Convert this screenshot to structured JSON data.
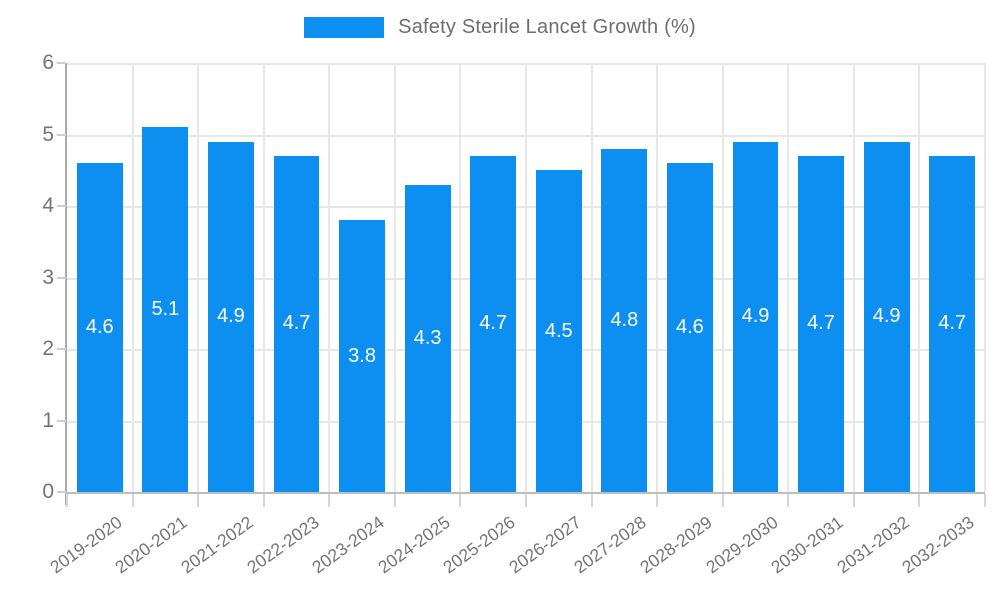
{
  "chart_data": {
    "type": "bar",
    "title": "Safety Sterile Lancet Growth (%)",
    "categories": [
      "2019-2020",
      "2020-2021",
      "2021-2022",
      "2022-2023",
      "2023-2024",
      "2024-2025",
      "2025-2026",
      "2026-2027",
      "2027-2028",
      "2028-2029",
      "2029-2030",
      "2030-2031",
      "2031-2032",
      "2032-2033"
    ],
    "values": [
      4.6,
      5.1,
      4.9,
      4.7,
      3.8,
      4.3,
      4.7,
      4.5,
      4.8,
      4.6,
      4.9,
      4.7,
      4.9,
      4.7
    ],
    "xlabel": "",
    "ylabel": "",
    "ylim": [
      0,
      6
    ],
    "yticks": [
      0,
      1,
      2,
      3,
      4,
      5,
      6
    ],
    "grid": "on",
    "legend_position": "top",
    "bar_color": "#0d8ff2",
    "value_label_color": "#ffffff",
    "axis_text_color": "#757575"
  }
}
